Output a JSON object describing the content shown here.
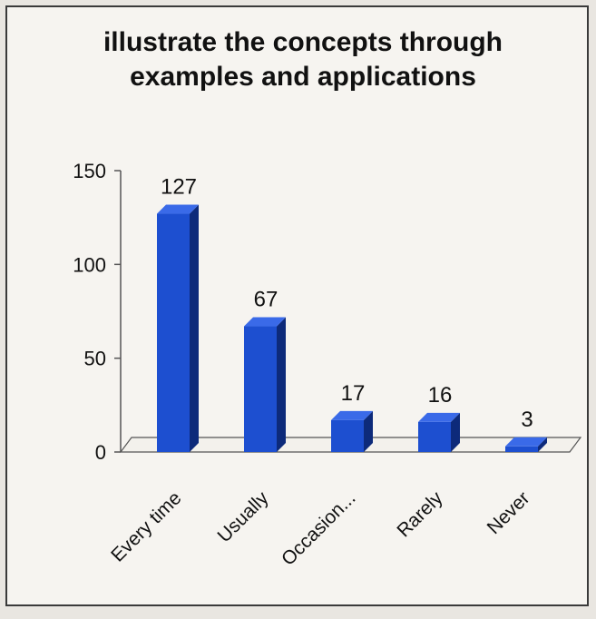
{
  "chart_data": {
    "type": "bar",
    "title_lines": [
      "illustrate the concepts through",
      "examples and applications"
    ],
    "categories": [
      "Every time",
      "Usually",
      "Occasion...",
      "Rarely",
      "Never"
    ],
    "values": [
      127,
      67,
      17,
      16,
      3
    ],
    "data_labels": [
      "127",
      "67",
      "17",
      "16",
      "3"
    ],
    "ylim": [
      0,
      150
    ],
    "yticks": [
      0,
      50,
      100,
      150
    ],
    "xlabel": "",
    "ylabel": "",
    "grid": false,
    "legend": "none",
    "style": "3d-column"
  },
  "colors": {
    "bar_front": "#1d4fd0",
    "bar_side": "#0d2a7a",
    "bar_top": "#3a6ae8",
    "floor": "#f3f1ec",
    "axis": "#555555"
  }
}
